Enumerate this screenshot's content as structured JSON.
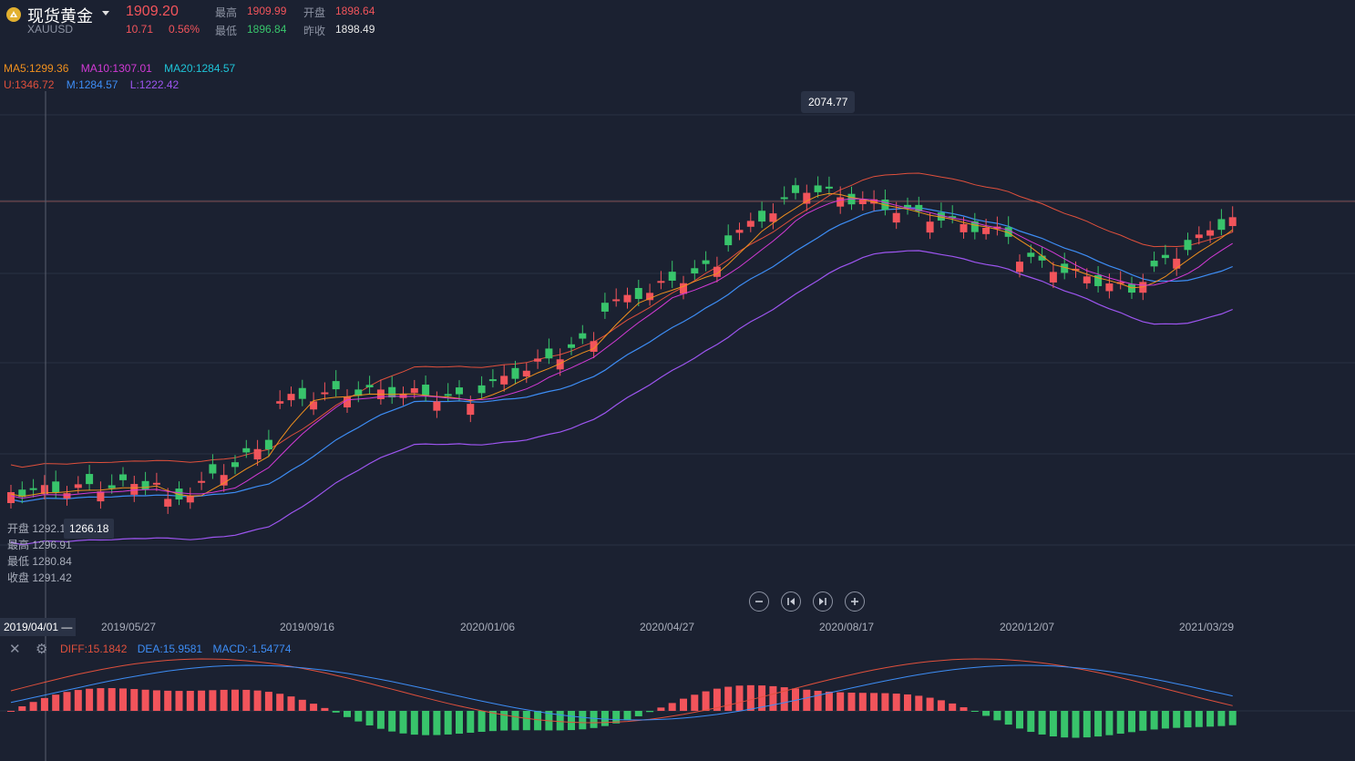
{
  "header": {
    "title": "现货黄金",
    "symbol": "XAUUSD",
    "price": "1909.20",
    "change": "10.71",
    "change_pct": "0.56%",
    "high_label": "最高",
    "high": "1909.99",
    "open_label": "开盘",
    "open": "1898.64",
    "low_label": "最低",
    "low": "1896.84",
    "prev_close_label": "昨收",
    "prev_close": "1898.49"
  },
  "indicators": {
    "ma5": "MA5:1299.36",
    "ma10": "MA10:1307.01",
    "ma20": "MA20:1284.57",
    "boll_u": "U:1346.72",
    "boll_m": "M:1284.57",
    "boll_l": "L:1222.42"
  },
  "crosshair": {
    "price_tag": "1266.18",
    "date_tag": "2019/04/01",
    "open_label": "开盘",
    "open": "1292.1",
    "high_label": "最高",
    "high": "1296.91",
    "low_label": "最低",
    "low": "1280.84",
    "close_label": "收盘",
    "close": "1291.42"
  },
  "max_tag": "2074.77",
  "x_axis": [
    "2019/05/27",
    "2019/09/16",
    "2020/01/06",
    "2020/04/27",
    "2020/08/17",
    "2020/12/07",
    "2021/03/29"
  ],
  "macd": {
    "diff": "DIFF:15.1842",
    "dea": "DEA:15.9581",
    "macd": "MACD:-1.54774"
  },
  "controls": [
    "zoom-out",
    "step-back",
    "step-forward",
    "zoom-in"
  ],
  "colors": {
    "up": "#f2545b",
    "down": "#38c46b",
    "ma5": "#f0901e",
    "ma10": "#d33ad6",
    "ma20": "#1ec4d8",
    "boll_u": "#e0503c",
    "boll_m": "#3d8df5",
    "boll_l": "#9d55f0",
    "dea": "#3d8df5",
    "diff": "#e0503c"
  }
}
